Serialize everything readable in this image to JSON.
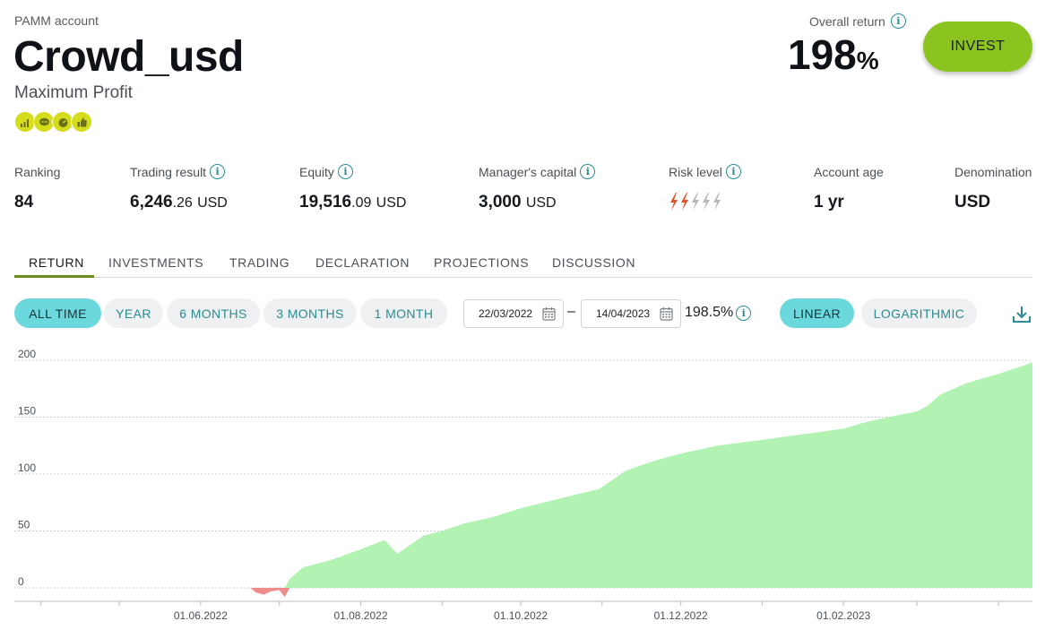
{
  "account": {
    "type_label": "PAMM account",
    "name": "Crowd_usd",
    "strategy": "Maximum Profit",
    "badges": [
      "chart-icon",
      "chat-icon",
      "gauge-icon",
      "thumbs-up-icon"
    ],
    "badge_color": "#d4dc1c"
  },
  "overall_return": {
    "label": "Overall return",
    "value": "198",
    "unit": "%"
  },
  "invest_button": {
    "label": "INVEST",
    "color": "#8cc41f"
  },
  "stats": {
    "ranking": {
      "label": "Ranking",
      "value": "84"
    },
    "trading_result": {
      "label": "Trading result",
      "int": "6,246",
      "frac": ".26",
      "unit": "USD"
    },
    "equity": {
      "label": "Equity",
      "int": "19,516",
      "frac": ".09",
      "unit": "USD"
    },
    "managers_capital": {
      "label": "Manager's capital",
      "int": "3,000",
      "unit": "USD"
    },
    "risk_level": {
      "label": "Risk level",
      "level": 2,
      "max": 5,
      "active_color": "#e2522a",
      "inactive_color": "#b4b8bb"
    },
    "account_age": {
      "label": "Account age",
      "value": "1 yr"
    },
    "denomination": {
      "label": "Denomination",
      "value": "USD"
    }
  },
  "tabs": [
    {
      "label": "RETURN",
      "active": true
    },
    {
      "label": "INVESTMENTS",
      "active": false
    },
    {
      "label": "TRADING",
      "active": false
    },
    {
      "label": "DECLARATION",
      "active": false
    },
    {
      "label": "PROJECTIONS",
      "active": false
    },
    {
      "label": "DISCUSSION",
      "active": false
    }
  ],
  "periods": [
    {
      "label": "ALL TIME",
      "active": true
    },
    {
      "label": "YEAR",
      "active": false
    },
    {
      "label": "6 MONTHS",
      "active": false
    },
    {
      "label": "3 MONTHS",
      "active": false
    },
    {
      "label": "1 MONTH",
      "active": false
    }
  ],
  "date_range": {
    "from": "22/03/2022",
    "to": "14/04/2023",
    "separator": "–",
    "return": "198.5%"
  },
  "scale_modes": [
    {
      "label": "LINEAR",
      "active": true
    },
    {
      "label": "LOGARITHMIC",
      "active": false
    }
  ],
  "colors": {
    "accent": "#2a8c92",
    "pill_active": "#6ad8dd",
    "positive_fill": "#b2f2b2",
    "negative_fill": "#ef8c8c"
  },
  "chart_data": {
    "type": "area",
    "xlabel": "",
    "ylabel": "",
    "ylim": [
      0,
      200
    ],
    "yticks": [
      0,
      50,
      100,
      150,
      200
    ],
    "xtick_labels": [
      "01.06.2022",
      "01.08.2022",
      "01.10.2022",
      "01.12.2022",
      "01.02.2023"
    ],
    "grid": true,
    "series": [
      {
        "x": [
          "2022-03-22",
          "2022-04-15",
          "2022-05-15",
          "2022-06-10",
          "2022-06-20",
          "2022-06-22",
          "2022-06-25",
          "2022-06-28",
          "2022-07-01",
          "2022-07-03",
          "2022-07-05",
          "2022-07-07",
          "2022-07-10",
          "2022-07-20",
          "2022-07-31",
          "2022-08-10",
          "2022-08-15",
          "2022-08-25",
          "2022-09-01",
          "2022-09-10",
          "2022-09-20",
          "2022-10-01",
          "2022-10-15",
          "2022-10-31",
          "2022-11-05",
          "2022-11-10",
          "2022-11-20",
          "2022-12-01",
          "2022-12-15",
          "2023-01-01",
          "2023-01-10",
          "2023-01-20",
          "2023-02-01",
          "2023-02-10",
          "2023-02-20",
          "2023-03-01",
          "2023-03-05",
          "2023-03-10",
          "2023-03-20",
          "2023-04-01",
          "2023-04-14"
        ],
        "values": [
          0,
          0,
          0,
          0,
          0,
          -4,
          -6,
          -3,
          -2,
          -8,
          8,
          12,
          18,
          24,
          33,
          42,
          30,
          46,
          50,
          57,
          62,
          70,
          78,
          87,
          95,
          103,
          111,
          118,
          125,
          130,
          133,
          136,
          140,
          146,
          151,
          155,
          160,
          170,
          180,
          188,
          198
        ]
      }
    ]
  }
}
